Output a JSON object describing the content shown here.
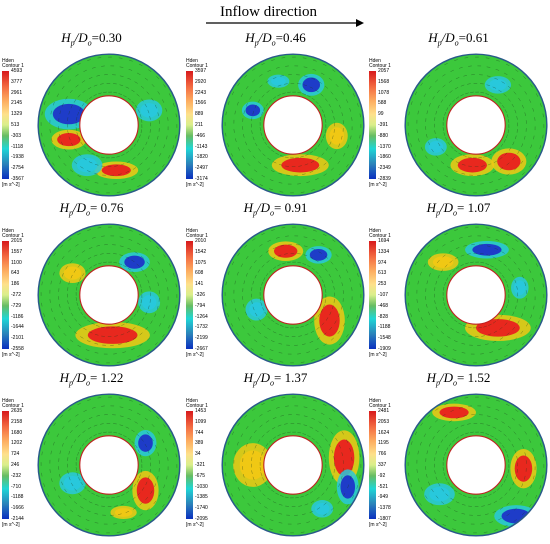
{
  "header": {
    "title": "Inflow direction"
  },
  "legend_common": {
    "name": "Hden",
    "contour": "Contour 1",
    "unit": "[m s^-2]"
  },
  "panels": [
    {
      "label_a": "H",
      "label_sub1": "p",
      "label_b": "/D",
      "label_sub2": "o",
      "value": "=0.30",
      "ticks": [
        "4593",
        "3777",
        "2961",
        "2145",
        "1329",
        "513",
        "-303",
        "-1118",
        "-1938",
        "-2754",
        "-3567"
      ]
    },
    {
      "label_a": "H",
      "label_sub1": "p",
      "label_b": "/D",
      "label_sub2": "o",
      "value": "=0.46",
      "ticks": [
        "3597",
        "2920",
        "2243",
        "1566",
        "889",
        "211",
        "-466",
        "-1143",
        "-1820",
        "-2497",
        "-3174"
      ]
    },
    {
      "label_a": "H",
      "label_sub1": "p",
      "label_b": "/D",
      "label_sub2": "o",
      "value": "=0.61",
      "ticks": [
        "2057",
        "1568",
        "1078",
        "588",
        "99",
        "-391",
        "-880",
        "-1370",
        "-1860",
        "-2349",
        "-2839"
      ]
    },
    {
      "label_a": "H",
      "label_sub1": "p",
      "label_b": "/D",
      "label_sub2": "o",
      "value": "= 0.76",
      "ticks": [
        "2015",
        "1557",
        "1100",
        "643",
        "186",
        "-272",
        "-729",
        "-1186",
        "-1644",
        "-2101",
        "-2558"
      ]
    },
    {
      "label_a": "H",
      "label_sub1": "p",
      "label_b": "/D",
      "label_sub2": "o",
      "value": "= 0.91",
      "ticks": [
        "2010",
        "1542",
        "1075",
        "608",
        "141",
        "-326",
        "-794",
        "-1264",
        "-1732",
        "-2199",
        "-2667"
      ]
    },
    {
      "label_a": "H",
      "label_sub1": "p",
      "label_b": "/D",
      "label_sub2": "o",
      "value": "= 1.07",
      "ticks": [
        "1694",
        "1334",
        "974",
        "613",
        "253",
        "-107",
        "-468",
        "-828",
        "-1188",
        "-1548",
        "-1909"
      ]
    },
    {
      "label_a": "H",
      "label_sub1": "p",
      "label_b": "/D",
      "label_sub2": "o",
      "value": "= 1.22",
      "ticks": [
        "2635",
        "2158",
        "1680",
        "1202",
        "724",
        "246",
        "-232",
        "-710",
        "-1188",
        "-1666",
        "-2144"
      ]
    },
    {
      "label_a": "H",
      "label_sub1": "p",
      "label_b": "/D",
      "label_sub2": "o",
      "value": "= 1.37",
      "ticks": [
        "1453",
        "1099",
        "744",
        "389",
        "34",
        "-321",
        "-675",
        "-1030",
        "-1385",
        "-1740",
        "-2095"
      ]
    },
    {
      "label_a": "H",
      "label_sub1": "p",
      "label_b": "/D",
      "label_sub2": "o",
      "value": "= 1.52",
      "ticks": [
        "2481",
        "2053",
        "1624",
        "1195",
        "766",
        "337",
        "-92",
        "-521",
        "-949",
        "-1378",
        "-1807"
      ]
    }
  ],
  "colors": {
    "field": "#3cc83c",
    "hot": "#e8281e",
    "warm": "#f0c814",
    "cool": "#28c8dc",
    "cold": "#1e3cc8"
  }
}
